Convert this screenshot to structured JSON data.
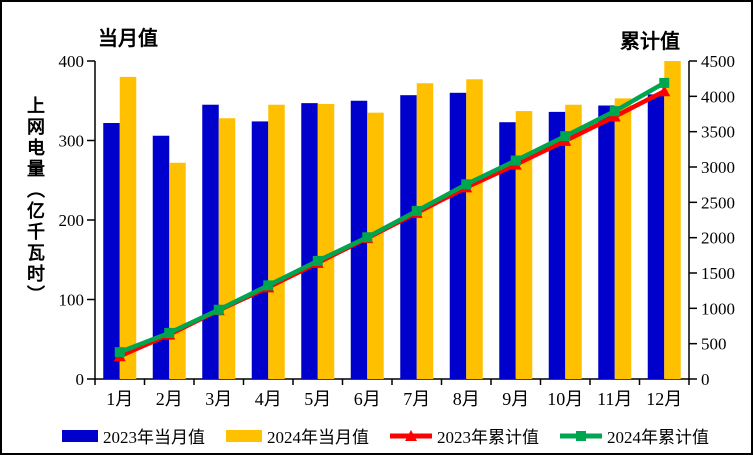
{
  "titles": {
    "left_axis_title": "当月值",
    "right_axis_title": "累计值",
    "y_axis_label": "上网电量（亿千瓦时）"
  },
  "colors": {
    "bar_2023": "#0000CC",
    "bar_2024": "#FFC000",
    "line_2023": "#FF0000",
    "line_2024": "#00A550",
    "axis": "#000000"
  },
  "chart_data": {
    "type": "bar",
    "subtype": "grouped bars with two cumulative lines on secondary axis",
    "title": "",
    "categories": [
      "1月",
      "2月",
      "3月",
      "4月",
      "5月",
      "6月",
      "7月",
      "8月",
      "9月",
      "10月",
      "11月",
      "12月"
    ],
    "left_axis": {
      "title": "当月值",
      "label": "上网电量（亿千瓦时）",
      "min": 0,
      "max": 400,
      "ticks": [
        0,
        100,
        200,
        300,
        400
      ]
    },
    "right_axis": {
      "title": "累计值",
      "min": 0,
      "max": 4500,
      "ticks": [
        0,
        500,
        1000,
        1500,
        2000,
        2500,
        3000,
        3500,
        4000,
        4500
      ]
    },
    "grid": false,
    "legend_position": "bottom",
    "series": [
      {
        "name": "2023年当月值",
        "type": "bar",
        "axis": "left",
        "color": "#0000CC",
        "values": [
          322,
          306,
          345,
          324,
          347,
          350,
          357,
          360,
          323,
          336,
          344,
          358
        ]
      },
      {
        "name": "2024年当月值",
        "type": "bar",
        "axis": "left",
        "color": "#FFC000",
        "values": [
          380,
          272,
          328,
          345,
          346,
          335,
          372,
          377,
          337,
          345,
          353,
          400
        ]
      },
      {
        "name": "2023年累计值",
        "type": "line",
        "axis": "right",
        "color": "#FF0000",
        "marker": "triangle",
        "values": [
          322,
          628,
          973,
          1297,
          1644,
          1994,
          2351,
          2711,
          3034,
          3370,
          3714,
          4072
        ]
      },
      {
        "name": "2024年累计值",
        "type": "line",
        "axis": "right",
        "color": "#00A550",
        "marker": "square",
        "values": [
          380,
          652,
          980,
          1325,
          1671,
          2006,
          2378,
          2755,
          3092,
          3437,
          3790,
          4190
        ]
      }
    ]
  }
}
